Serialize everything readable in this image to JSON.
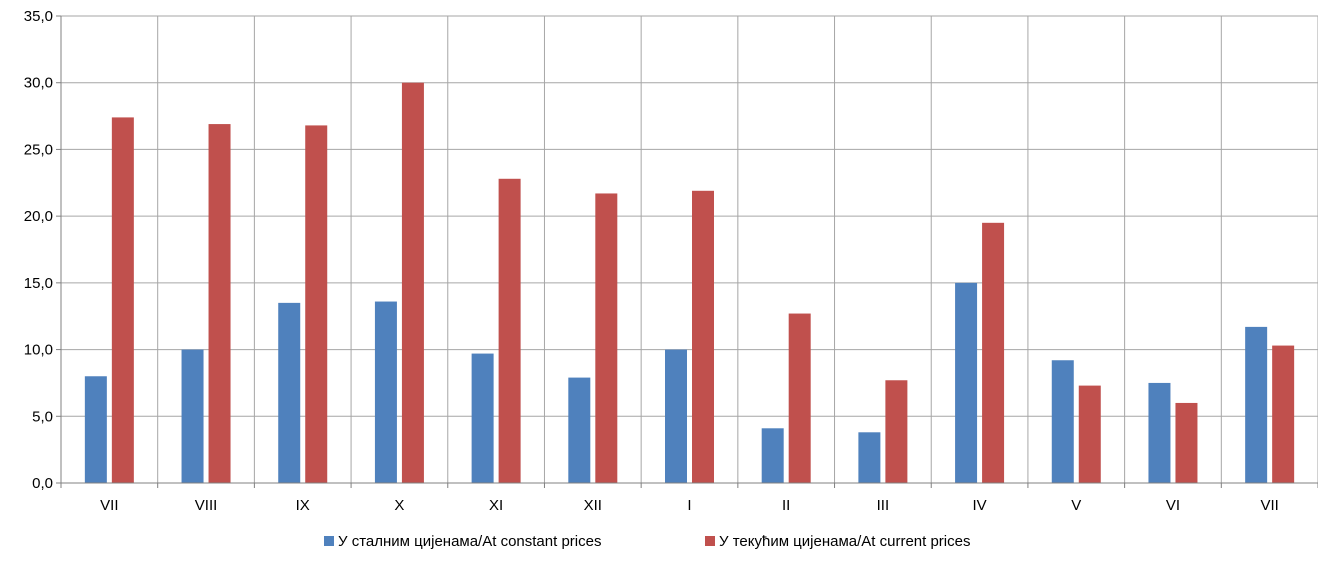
{
  "chart_data": {
    "type": "bar",
    "title": "",
    "xlabel": "",
    "ylabel": "",
    "categories": [
      "VII",
      "VIII",
      "IX",
      "X",
      "XI",
      "XII",
      "I",
      "II",
      "III",
      "IV",
      "V",
      "VI",
      "VII"
    ],
    "series": [
      {
        "name": "У сталним цијенама/At constant prices",
        "color": "#4f81bd",
        "values": [
          8.0,
          10.0,
          13.5,
          13.6,
          9.7,
          7.9,
          10.0,
          4.1,
          3.8,
          15.0,
          9.2,
          7.5,
          11.7
        ]
      },
      {
        "name": "У текућим цијенама/At current prices",
        "color": "#c0504d",
        "values": [
          27.4,
          26.9,
          26.8,
          30.0,
          22.8,
          21.7,
          21.9,
          12.7,
          7.7,
          19.5,
          7.3,
          6.0,
          10.3
        ]
      }
    ],
    "ylim": [
      0,
      35
    ],
    "yticks": [
      "0,0",
      "5,0",
      "10,0",
      "15,0",
      "20,0",
      "25,0",
      "30,0",
      "35,0"
    ],
    "grid": true,
    "legend_position": "bottom"
  }
}
